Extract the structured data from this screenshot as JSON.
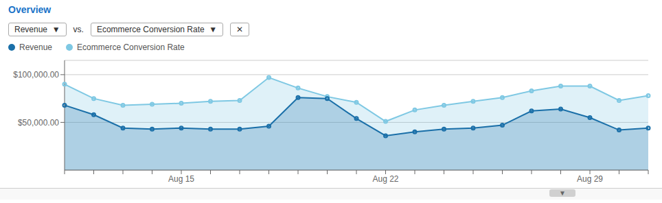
{
  "chart_data": {
    "type": "area",
    "title": "Overview",
    "annotations": [
      "Revenue  ▼",
      "vs.",
      "Ecommerce Conversion Rate  ▼",
      "✕",
      "▼"
    ],
    "categories": [
      null,
      null,
      null,
      null,
      "Aug 15",
      null,
      null,
      null,
      null,
      null,
      null,
      "Aug 22",
      null,
      null,
      null,
      null,
      null,
      null,
      "Aug 29",
      null,
      null
    ],
    "series": [
      {
        "name": "Revenue",
        "color": "#1a6fa8",
        "marker": "circle",
        "values": [
          68000,
          58000,
          44000,
          43000,
          44000,
          43000,
          43000,
          46000,
          76000,
          75000,
          54000,
          36000,
          40000,
          43000,
          44000,
          47000,
          62000,
          64000,
          55000,
          42000,
          44000
        ]
      },
      {
        "name": "Ecommerce Conversion Rate",
        "color": "#7ec8e3",
        "marker": "circle",
        "values": [
          90000,
          75000,
          68000,
          69000,
          70000,
          72000,
          73000,
          97000,
          86000,
          77000,
          71000,
          51000,
          63000,
          68000,
          72000,
          76000,
          83000,
          88000,
          88000,
          73000,
          78000
        ]
      }
    ],
    "ylim": [
      0,
      115000
    ],
    "yticks": [
      {
        "value": 100000,
        "label": "$100,000.00"
      },
      {
        "value": 50000,
        "label": "$50,000.00"
      }
    ],
    "grid": true,
    "legend": "upper left"
  }
}
